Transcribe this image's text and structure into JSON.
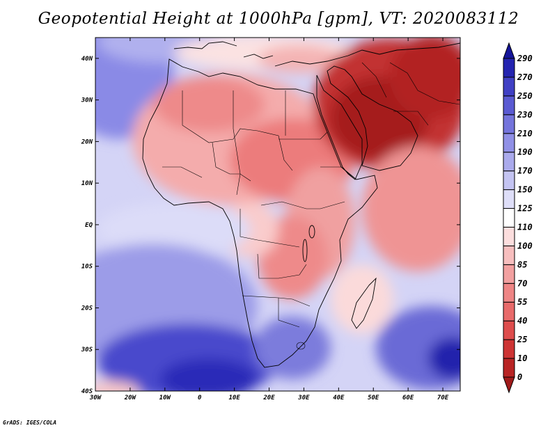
{
  "title": "Geopotential Height at 1000hPa [gpm], VT: 2020083112",
  "credit": "GrADS: IGES/COLA",
  "map": {
    "projection": "latlon",
    "lon_range": [
      -30,
      75
    ],
    "lat_range": [
      -40,
      45
    ],
    "lon_ticks": [
      {
        "value": -30,
        "label": "30W"
      },
      {
        "value": -20,
        "label": "20W"
      },
      {
        "value": -10,
        "label": "10W"
      },
      {
        "value": 0,
        "label": "0"
      },
      {
        "value": 10,
        "label": "10E"
      },
      {
        "value": 20,
        "label": "20E"
      },
      {
        "value": 30,
        "label": "30E"
      },
      {
        "value": 40,
        "label": "40E"
      },
      {
        "value": 50,
        "label": "50E"
      },
      {
        "value": 60,
        "label": "60E"
      },
      {
        "value": 70,
        "label": "70E"
      }
    ],
    "lat_ticks": [
      {
        "value": 40,
        "label": "40N"
      },
      {
        "value": 30,
        "label": "30N"
      },
      {
        "value": 20,
        "label": "20N"
      },
      {
        "value": 10,
        "label": "10N"
      },
      {
        "value": 0,
        "label": "EQ"
      },
      {
        "value": -10,
        "label": "10S"
      },
      {
        "value": -20,
        "label": "20S"
      },
      {
        "value": -30,
        "label": "30S"
      },
      {
        "value": -40,
        "label": "40S"
      }
    ]
  },
  "colorbar": {
    "levels": [
      "0",
      "10",
      "25",
      "40",
      "55",
      "70",
      "85",
      "100",
      "110",
      "125",
      "150",
      "170",
      "190",
      "210",
      "230",
      "250",
      "270",
      "290"
    ],
    "colors": [
      "#a01a1a",
      "#b82424",
      "#cd3434",
      "#de4d4d",
      "#e86a6a",
      "#ee8585",
      "#f2a0a0",
      "#f7bebe",
      "#fcdede",
      "#ffffff",
      "#dedef8",
      "#c4c4f2",
      "#aaaaec",
      "#9090e6",
      "#7474dc",
      "#5a5ad2",
      "#4040c4",
      "#2424b0",
      "#14149a"
    ]
  },
  "field": {
    "description_levels": "values in gpm",
    "regions": [
      {
        "name": "arabia-low",
        "value": 0
      },
      {
        "name": "saharan-low",
        "value": 55
      },
      {
        "name": "south-atlantic-high",
        "value": 250
      },
      {
        "name": "indian-ocean-high",
        "value": 270
      }
    ]
  }
}
